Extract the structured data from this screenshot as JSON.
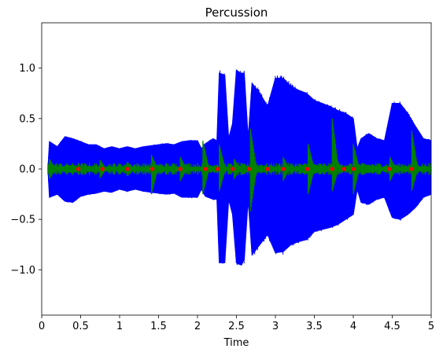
{
  "chart_data": {
    "type": "line",
    "title": "Percussion",
    "xlabel": "Time",
    "ylabel": "",
    "xlim": [
      0,
      5
    ],
    "ylim": [
      -1.45,
      1.45
    ],
    "grid": false,
    "x_ticks": [
      0,
      0.5,
      1,
      1.5,
      2,
      2.5,
      3,
      3.5,
      4,
      4.5,
      5
    ],
    "x_tick_labels": [
      "0",
      "0.5",
      "1",
      "1.5",
      "2",
      "2.5",
      "3",
      "3.5",
      "4",
      "4.5",
      "5"
    ],
    "y_ticks": [
      1.0,
      0.5,
      0.0,
      -0.5,
      -1.0
    ],
    "y_tick_labels": [
      "1.0",
      "0.5",
      "0.0",
      "−0.5",
      "−1.0"
    ],
    "series": [
      {
        "role": "waveform-envelope",
        "color": "#0000ff",
        "x": [
          0.08,
          0.1,
          0.2,
          0.3,
          0.4,
          0.5,
          0.6,
          0.7,
          0.8,
          0.9,
          1.0,
          1.1,
          1.2,
          1.3,
          1.4,
          1.5,
          1.6,
          1.7,
          1.8,
          1.9,
          2.0,
          2.05,
          2.1,
          2.2,
          2.25,
          2.28,
          2.35,
          2.4,
          2.45,
          2.5,
          2.55,
          2.6,
          2.65,
          2.7,
          2.8,
          2.9,
          3.0,
          3.1,
          3.2,
          3.3,
          3.4,
          3.5,
          3.6,
          3.7,
          3.8,
          3.9,
          4.0,
          4.05,
          4.1,
          4.2,
          4.3,
          4.4,
          4.5,
          4.6,
          4.7,
          4.8,
          4.9,
          5.0
        ],
        "upper": [
          0.0,
          0.27,
          0.22,
          0.32,
          0.3,
          0.27,
          0.24,
          0.24,
          0.2,
          0.22,
          0.2,
          0.22,
          0.2,
          0.22,
          0.23,
          0.24,
          0.25,
          0.24,
          0.27,
          0.28,
          0.28,
          0.2,
          0.25,
          0.3,
          0.28,
          0.95,
          0.93,
          0.3,
          0.45,
          0.98,
          0.95,
          0.95,
          0.3,
          0.85,
          0.75,
          0.62,
          0.9,
          0.9,
          0.82,
          0.78,
          0.75,
          0.68,
          0.65,
          0.62,
          0.58,
          0.55,
          0.5,
          0.2,
          0.3,
          0.35,
          0.3,
          0.28,
          0.65,
          0.65,
          0.55,
          0.42,
          0.3,
          0.28
        ],
        "lower": [
          0.0,
          -0.28,
          -0.25,
          -0.32,
          -0.33,
          -0.27,
          -0.25,
          -0.24,
          -0.22,
          -0.23,
          -0.2,
          -0.22,
          -0.2,
          -0.22,
          -0.23,
          -0.24,
          -0.25,
          -0.24,
          -0.28,
          -0.28,
          -0.28,
          -0.2,
          -0.27,
          -0.3,
          -0.3,
          -0.93,
          -0.93,
          -0.3,
          -0.45,
          -0.93,
          -0.95,
          -0.9,
          -0.3,
          -0.85,
          -0.75,
          -0.65,
          -0.83,
          -0.82,
          -0.75,
          -0.72,
          -0.7,
          -0.62,
          -0.6,
          -0.58,
          -0.55,
          -0.5,
          -0.45,
          -0.2,
          -0.33,
          -0.35,
          -0.3,
          -0.28,
          -0.48,
          -0.5,
          -0.45,
          -0.38,
          -0.28,
          -0.25
        ]
      },
      {
        "role": "percussive-waveform",
        "color": "#008000",
        "baseline_amplitude": 0.04,
        "spikes": [
          {
            "x": 0.1,
            "upper": 0.1,
            "lower": -0.1
          },
          {
            "x": 0.75,
            "upper": 0.09,
            "lower": -0.09
          },
          {
            "x": 1.1,
            "upper": 0.07,
            "lower": -0.07
          },
          {
            "x": 1.41,
            "upper": 0.14,
            "lower": -0.25
          },
          {
            "x": 1.78,
            "upper": 0.12,
            "lower": -0.12
          },
          {
            "x": 2.07,
            "upper": 0.28,
            "lower": -0.25
          },
          {
            "x": 2.28,
            "upper": 0.24,
            "lower": -0.22
          },
          {
            "x": 2.47,
            "upper": 0.1,
            "lower": -0.1
          },
          {
            "x": 2.68,
            "upper": 0.4,
            "lower": -0.42
          },
          {
            "x": 3.1,
            "upper": 0.12,
            "lower": -0.12
          },
          {
            "x": 3.42,
            "upper": 0.25,
            "lower": -0.25
          },
          {
            "x": 3.73,
            "upper": 0.5,
            "lower": -0.22
          },
          {
            "x": 4.0,
            "upper": 0.25,
            "lower": -0.25
          },
          {
            "x": 4.47,
            "upper": 0.12,
            "lower": -0.12
          },
          {
            "x": 4.75,
            "upper": 0.38,
            "lower": -0.22
          }
        ]
      }
    ],
    "onset_markers": {
      "color": "#ff0000",
      "y": 0.0,
      "x": [
        0.47,
        0.78,
        1.1,
        1.42,
        1.78,
        2.1,
        2.26,
        2.45,
        2.66,
        2.9,
        3.1,
        3.41,
        3.73,
        3.88,
        4.0,
        4.46,
        4.75
      ]
    }
  }
}
